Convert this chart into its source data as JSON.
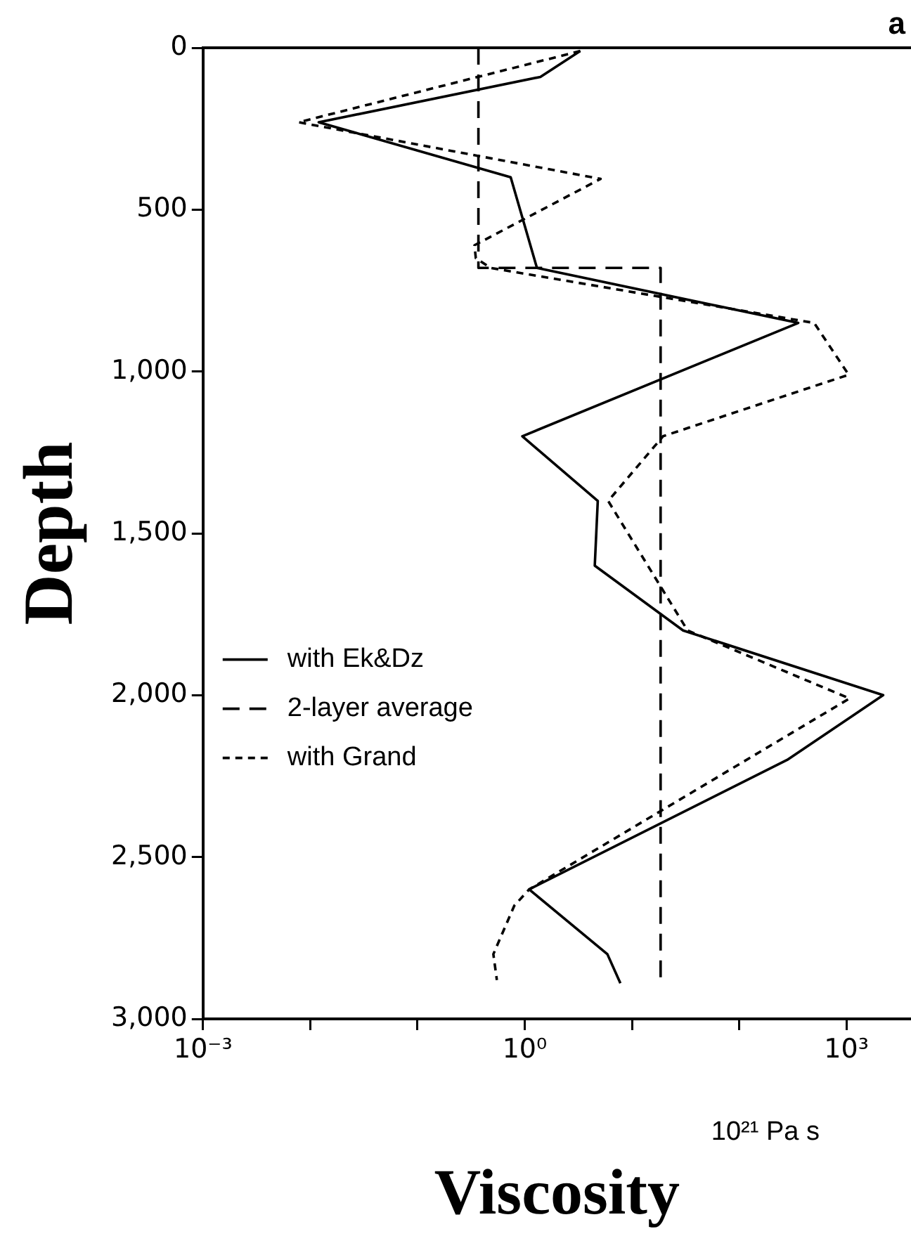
{
  "chart_data": {
    "type": "line",
    "xlabel": "Viscosity",
    "ylabel": "Depth",
    "annotations": [
      "a",
      "10²¹ Pa s"
    ],
    "log": "x",
    "xlim": [
      0.001,
      4000
    ],
    "ylim": [
      3000,
      0
    ],
    "xticks": [
      {
        "value": 0.001,
        "label": "10⁻³"
      },
      {
        "value": 0.01,
        "label": null
      },
      {
        "value": 0.1,
        "label": null
      },
      {
        "value": 1,
        "label": "10⁰"
      },
      {
        "value": 10,
        "label": null
      },
      {
        "value": 100,
        "label": null
      },
      {
        "value": 1000,
        "label": "10³"
      }
    ],
    "yticks": [
      0,
      500,
      {
        "value": 1000,
        "label": "1,000"
      },
      {
        "value": 1500,
        "label": "1,500"
      },
      {
        "value": 2000,
        "label": "2,000"
      },
      {
        "value": 2500,
        "label": "2,500"
      },
      {
        "value": 3000,
        "label": "3,000"
      }
    ],
    "grid": false,
    "legend": "left",
    "series": [
      {
        "name": "with Ek&Dz",
        "color": "#000000",
        "line_style": "solid",
        "x": [
          3.3,
          1.4,
          0.012,
          0.74,
          1.3,
          355,
          0.95,
          4.8,
          4.5,
          30,
          2200,
          280,
          1.1,
          5.9,
          7.8
        ],
        "values": [
          10,
          90,
          230,
          400,
          680,
          850,
          1200,
          1400,
          1600,
          1800,
          2000,
          2200,
          2600,
          2800,
          2890
        ]
      },
      {
        "name": "2-layer average",
        "color": "#000000",
        "line_style": "dashed",
        "x": [
          0.37,
          0.37,
          18.5,
          18.5
        ],
        "values": [
          0,
          680,
          680,
          2890
        ]
      },
      {
        "name": "with Grand",
        "color": "#000000",
        "line_style": "dotted",
        "x": [
          3.3,
          0.0078,
          5.1,
          0.34,
          0.35,
          0.48,
          500,
          1050,
          19.5,
          6,
          33,
          1070,
          1.1,
          0.8,
          0.51,
          0.55
        ],
        "values": [
          10,
          230,
          405,
          610,
          650,
          680,
          850,
          1010,
          1200,
          1400,
          1800,
          2010,
          2600,
          2650,
          2800,
          2880
        ]
      }
    ]
  }
}
